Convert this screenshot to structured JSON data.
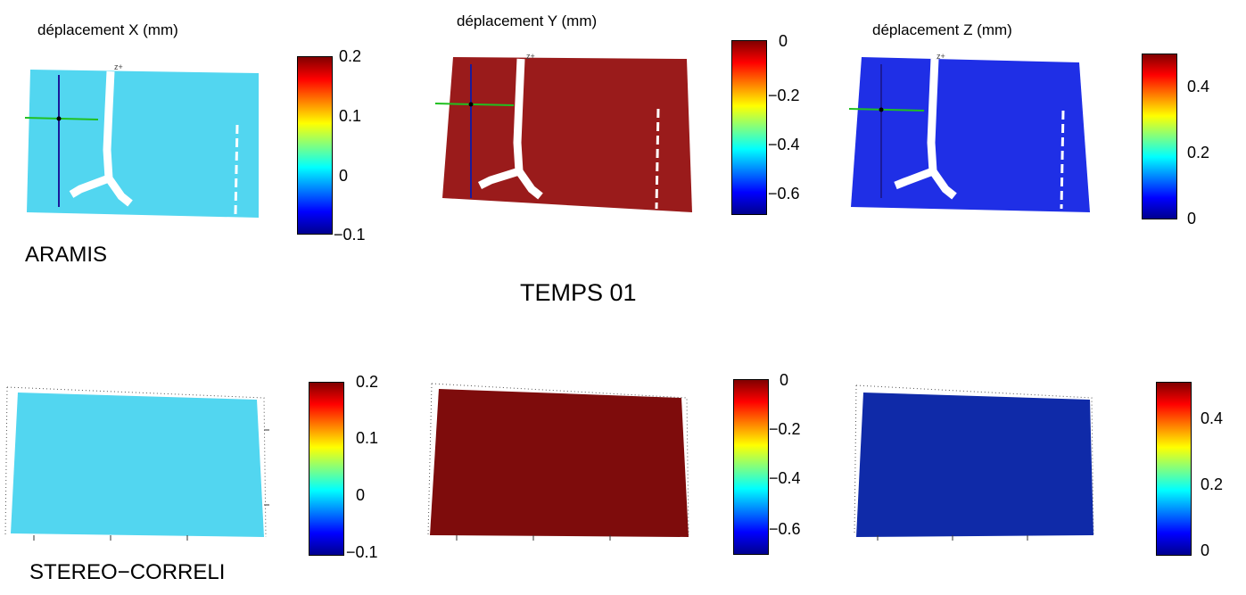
{
  "header": {
    "center_title": "TEMPS 01"
  },
  "rows": [
    {
      "method_label": "ARAMIS"
    },
    {
      "method_label": "STEREO−CORRELI"
    }
  ],
  "columns": [
    {
      "title": "déplacement X (mm)",
      "colorbar_ticks": [
        "0.2",
        "0.1",
        "0",
        "−0.1"
      ],
      "surface_color": "#52d6f0"
    },
    {
      "title": "déplacement Y (mm)",
      "colorbar_ticks": [
        "0",
        "−0.2",
        "−0.4",
        "−0.6"
      ],
      "surface_color": "#9a1b1b"
    },
    {
      "title": "déplacement Z (mm)",
      "colorbar_ticks": [
        "0.4",
        "0.2",
        "0"
      ],
      "surface_color": "#1f2fe6"
    }
  ],
  "colormap": "jet",
  "axis_glyph_label": "z+"
}
